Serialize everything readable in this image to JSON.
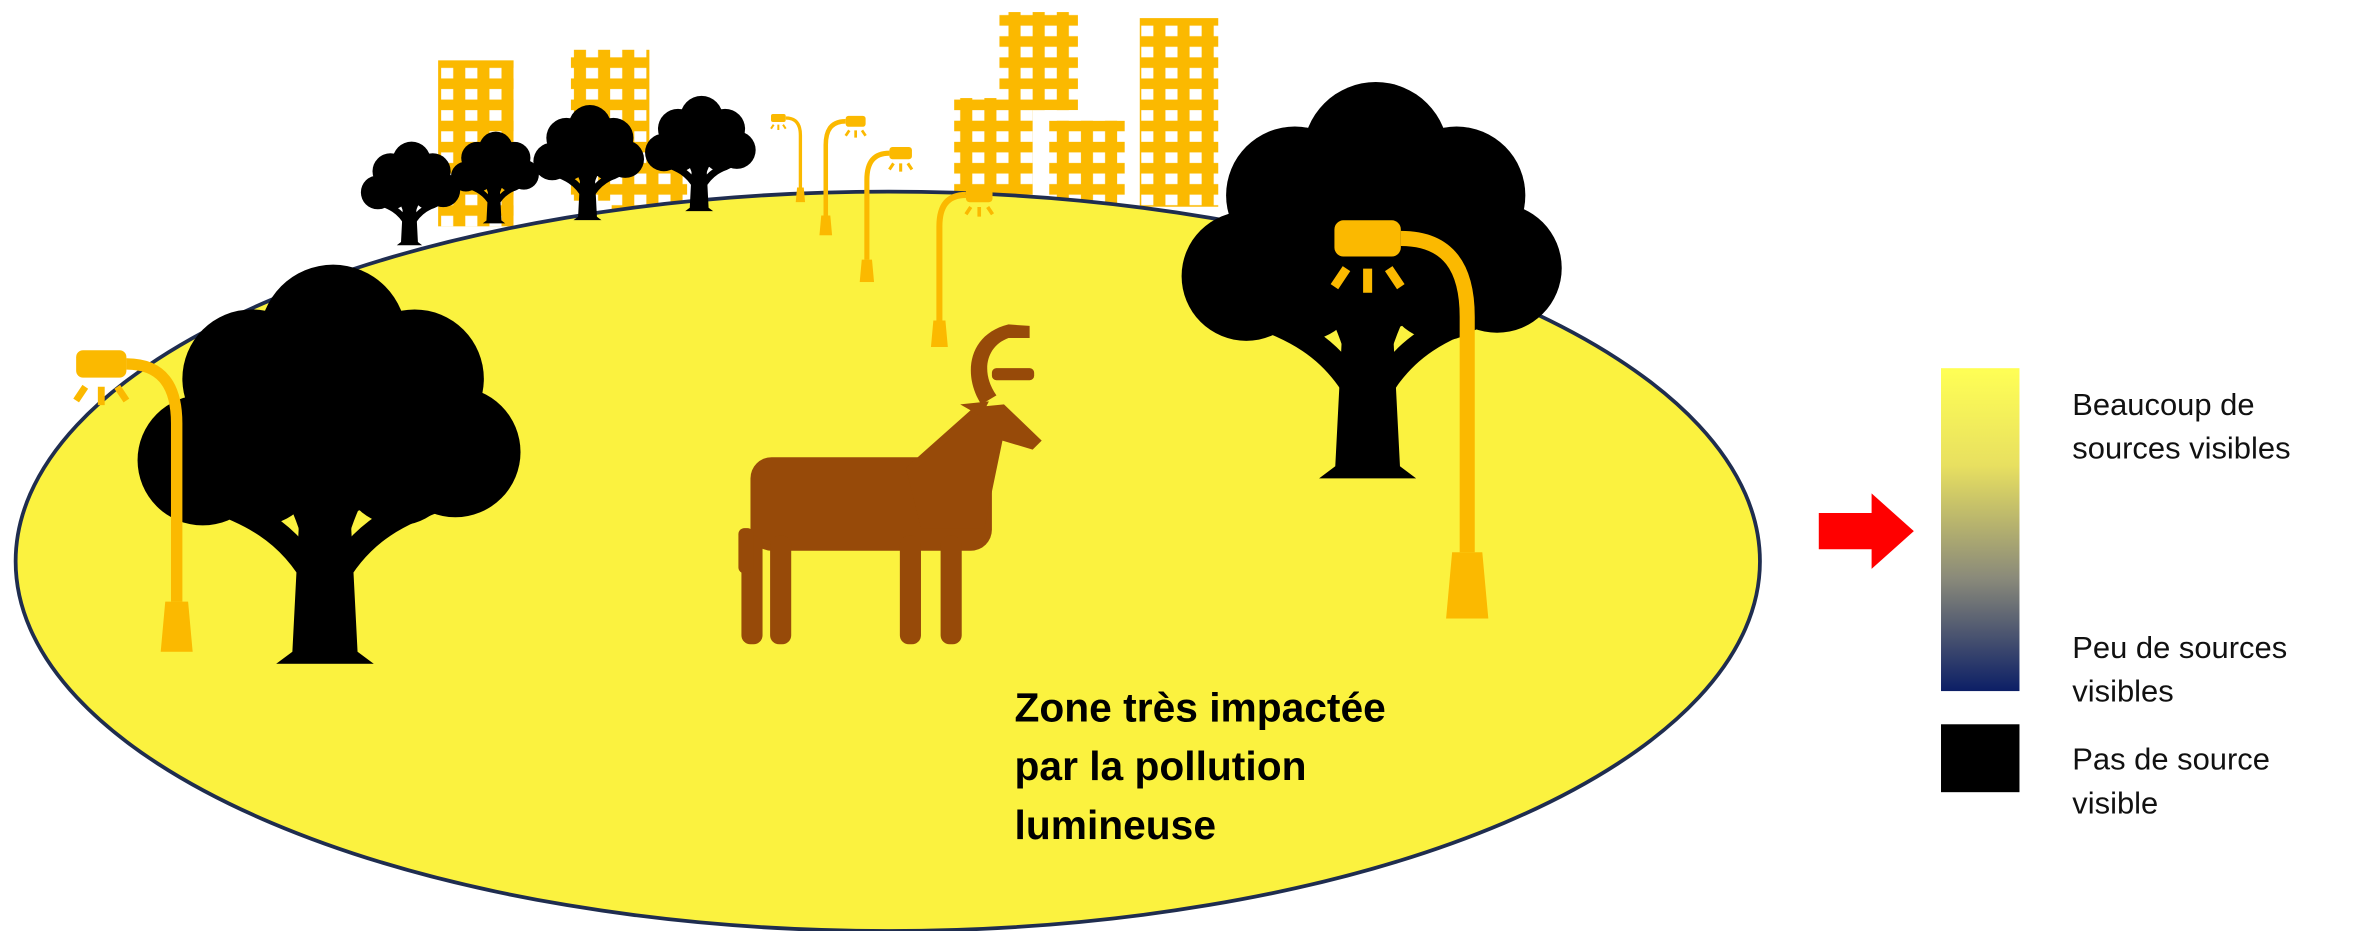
{
  "zone_label": {
    "lines": [
      "Zone très impactée",
      "par la pollution",
      "lumineuse"
    ]
  },
  "legend": {
    "items": [
      {
        "lines": [
          "Beaucoup de",
          "sources visibles"
        ]
      },
      {
        "lines": [
          "Peu de sources",
          "visibles"
        ]
      },
      {
        "lines": [
          "Pas de source",
          "visible"
        ]
      }
    ]
  }
}
